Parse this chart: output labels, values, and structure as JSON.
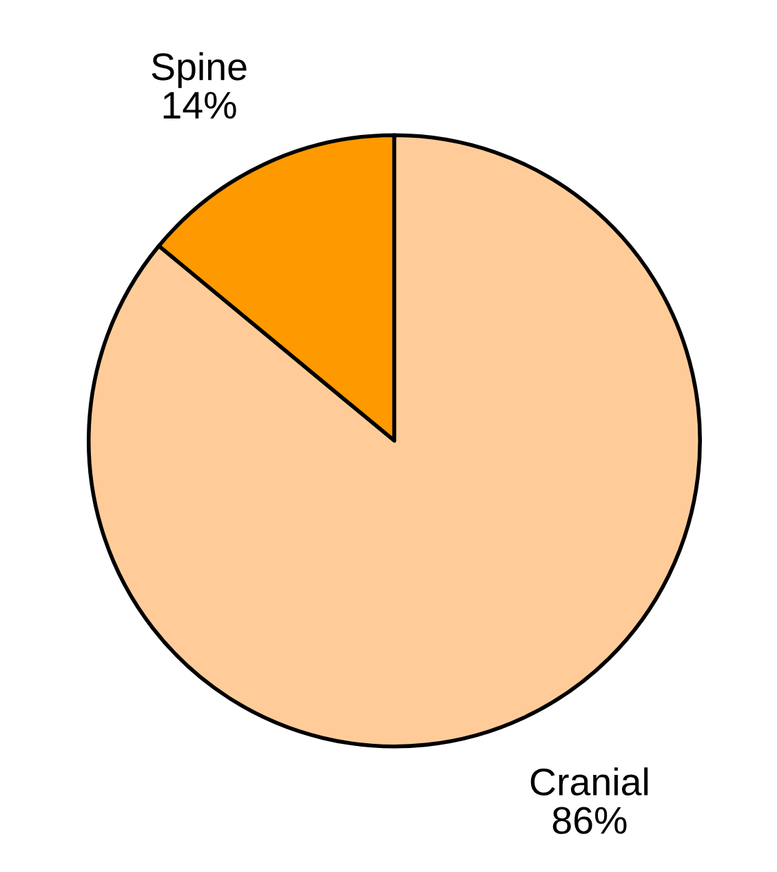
{
  "chart_data": {
    "type": "pie",
    "categories": [
      "Spine",
      "Cranial"
    ],
    "values": [
      14,
      86
    ],
    "value_labels": [
      "14%",
      "86%"
    ],
    "colors": [
      "#ff9900",
      "#ffcc99"
    ],
    "legend": false
  }
}
